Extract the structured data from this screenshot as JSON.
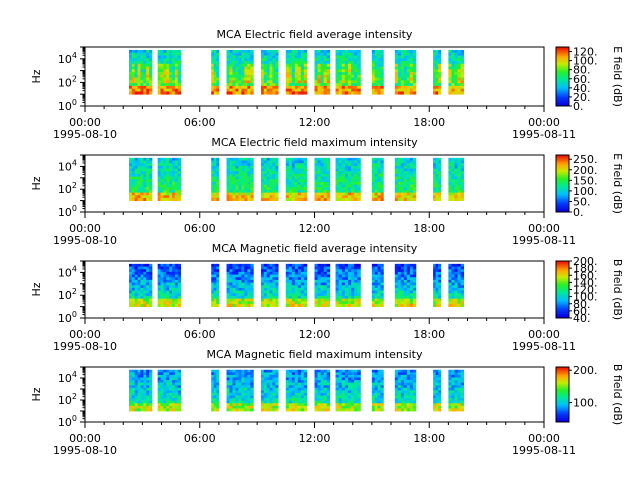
{
  "figure": {
    "x_tick_labels": [
      "00:00",
      "06:00",
      "12:00",
      "18:00",
      "00:00"
    ],
    "x_date_labels": [
      "1995-08-10",
      "1995-08-11"
    ]
  },
  "chart_data": [
    {
      "type": "heatmap",
      "title": "MCA  Electric field average intensity",
      "ylabel": "Hz",
      "y_scale": "log",
      "ylim": [
        1,
        100000
      ],
      "y_ticks": [
        "10^0",
        "10^2",
        "10^4"
      ],
      "xlim": [
        "1995-08-10 00:00",
        "1995-08-11 00:00"
      ],
      "x_ticks": [
        "00:00",
        "06:00",
        "12:00",
        "18:00",
        "00:00"
      ],
      "data_lower_hz": 10,
      "data_upper_hz": 56000,
      "intervals_hours": [
        [
          2.3,
          3.5
        ],
        [
          3.8,
          5.0
        ],
        [
          6.6,
          7.0
        ],
        [
          7.4,
          8.8
        ],
        [
          9.2,
          10.1
        ],
        [
          10.5,
          11.6
        ],
        [
          12.0,
          12.8
        ],
        [
          13.1,
          14.4
        ],
        [
          15.0,
          15.6
        ],
        [
          16.2,
          17.3
        ],
        [
          18.2,
          18.6
        ],
        [
          19.0,
          19.8
        ]
      ],
      "colorbar": {
        "label": "E field (dB)",
        "min": 0,
        "max": 130,
        "ticks": [
          "0.",
          "20.",
          "40.",
          "60.",
          "80.",
          "100.",
          "120."
        ],
        "tick_values": [
          0,
          20,
          40,
          60,
          80,
          100,
          120
        ]
      },
      "colormap": "rainbow"
    },
    {
      "type": "heatmap",
      "title": "MCA  Electric field maximum intensity",
      "ylabel": "Hz",
      "y_scale": "log",
      "ylim": [
        1,
        100000
      ],
      "y_ticks": [
        "10^0",
        "10^2",
        "10^4"
      ],
      "xlim": [
        "1995-08-10 00:00",
        "1995-08-11 00:00"
      ],
      "x_ticks": [
        "00:00",
        "06:00",
        "12:00",
        "18:00",
        "00:00"
      ],
      "data_lower_hz": 10,
      "data_upper_hz": 56000,
      "intervals_hours": [
        [
          2.3,
          3.5
        ],
        [
          3.8,
          5.0
        ],
        [
          6.6,
          7.0
        ],
        [
          7.4,
          8.8
        ],
        [
          9.2,
          10.1
        ],
        [
          10.5,
          11.6
        ],
        [
          12.0,
          12.8
        ],
        [
          13.1,
          14.4
        ],
        [
          15.0,
          15.6
        ],
        [
          16.2,
          17.3
        ],
        [
          18.2,
          18.6
        ],
        [
          19.0,
          19.8
        ]
      ],
      "colorbar": {
        "label": "E field (dB)",
        "min": 0,
        "max": 270,
        "ticks": [
          "0.",
          "50.",
          "100.",
          "150.",
          "200.",
          "250."
        ],
        "tick_values": [
          0,
          50,
          100,
          150,
          200,
          250
        ]
      },
      "colormap": "rainbow"
    },
    {
      "type": "heatmap",
      "title": "MCA  Magnetic field average intensity",
      "ylabel": "Hz",
      "y_scale": "log",
      "ylim": [
        1,
        100000
      ],
      "y_ticks": [
        "10^0",
        "10^2",
        "10^4"
      ],
      "xlim": [
        "1995-08-10 00:00",
        "1995-08-11 00:00"
      ],
      "x_ticks": [
        "00:00",
        "06:00",
        "12:00",
        "18:00",
        "00:00"
      ],
      "data_lower_hz": 10,
      "data_upper_hz": 56000,
      "intervals_hours": [
        [
          2.3,
          3.5
        ],
        [
          3.8,
          5.0
        ],
        [
          6.6,
          7.0
        ],
        [
          7.4,
          8.8
        ],
        [
          9.2,
          10.1
        ],
        [
          10.5,
          11.6
        ],
        [
          12.0,
          12.8
        ],
        [
          13.1,
          14.4
        ],
        [
          15.0,
          15.6
        ],
        [
          16.2,
          17.3
        ],
        [
          18.2,
          18.6
        ],
        [
          19.0,
          19.8
        ]
      ],
      "colorbar": {
        "label": "B field (dB)",
        "min": 40,
        "max": 200,
        "ticks": [
          "40.",
          "60.",
          "80.",
          "100.",
          "120.",
          "140.",
          "160.",
          "180.",
          "200."
        ],
        "tick_values": [
          40,
          60,
          80,
          100,
          120,
          140,
          160,
          180,
          200
        ]
      },
      "colormap": "rainbow"
    },
    {
      "type": "heatmap",
      "title": "MCA  Magnetic field maximum intensity",
      "ylabel": "Hz",
      "y_scale": "log",
      "ylim": [
        1,
        100000
      ],
      "y_ticks": [
        "10^0",
        "10^2",
        "10^4"
      ],
      "xlim": [
        "1995-08-10 00:00",
        "1995-08-11 00:00"
      ],
      "x_ticks": [
        "00:00",
        "06:00",
        "12:00",
        "18:00",
        "00:00"
      ],
      "data_lower_hz": 10,
      "data_upper_hz": 56000,
      "intervals_hours": [
        [
          2.3,
          3.5
        ],
        [
          3.8,
          5.0
        ],
        [
          6.6,
          7.0
        ],
        [
          7.4,
          8.8
        ],
        [
          9.2,
          10.1
        ],
        [
          10.5,
          11.6
        ],
        [
          12.0,
          12.8
        ],
        [
          13.1,
          14.4
        ],
        [
          15.0,
          15.6
        ],
        [
          16.2,
          17.3
        ],
        [
          18.2,
          18.6
        ],
        [
          19.0,
          19.8
        ]
      ],
      "colorbar": {
        "label": "B field (dB)",
        "min": 40,
        "max": 210,
        "ticks": [
          "100.",
          "200."
        ],
        "tick_values": [
          100,
          200
        ]
      },
      "colormap": "rainbow"
    }
  ]
}
